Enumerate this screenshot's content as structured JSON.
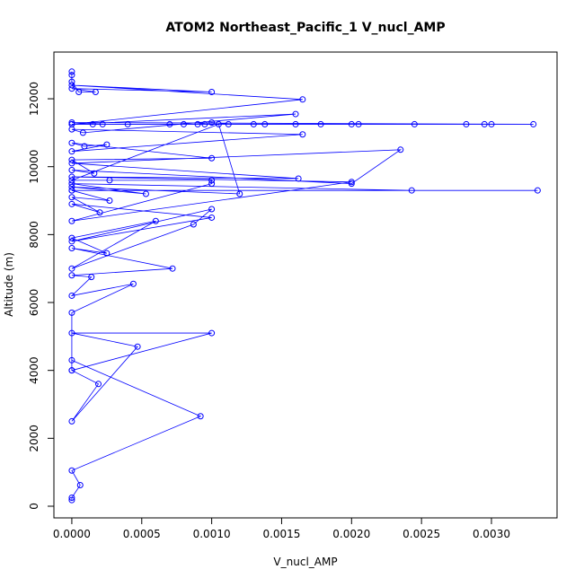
{
  "chart_data": {
    "type": "line",
    "title": "ATOM2 Northeast_Pacific_1 V_nucl_AMP",
    "x_label": "V_nucl_AMP",
    "y_label": "Altitude (m)",
    "color": "#0000ff",
    "x": [
      0,
      0,
      6e-05,
      0,
      0.00092,
      0,
      0,
      0.00019,
      0,
      0.00047,
      0,
      0.001,
      0,
      0,
      0.00044,
      0,
      0.00014,
      0,
      0.00072,
      0,
      0.00025,
      0,
      0.0006,
      0,
      0.00087,
      0.001,
      0,
      0.001,
      0,
      0.0002,
      0,
      0.00027,
      0,
      0.00333,
      0,
      0.00243,
      0,
      0.00053,
      0,
      0.0012,
      0.00105,
      0,
      0.00027,
      0.001,
      0.001,
      0,
      0.002,
      0,
      0.00162,
      0,
      0.00235,
      0.002,
      0,
      0.00016,
      0,
      0.001,
      0,
      9e-05,
      0.00025,
      0,
      0.00165,
      0,
      8e-05,
      0.0016,
      0,
      0.00015,
      0.00022,
      0.0004,
      0.0007,
      0.0008,
      0.0009,
      0.001,
      0.00112,
      0.0013,
      0.0016,
      0.00178,
      0.002,
      0.00245,
      0.00282,
      0.003,
      0.0033,
      0,
      0.00295,
      0.00205,
      0.00138,
      0.00095,
      0,
      0.00165,
      0,
      0.001,
      0,
      0.00017,
      5e-05,
      0,
      0,
      0
    ],
    "values": [
      180,
      250,
      620,
      1050,
      2650,
      4300,
      4000,
      3600,
      2500,
      4700,
      5100,
      5100,
      4000,
      5700,
      6550,
      6200,
      6750,
      6800,
      7000,
      7600,
      7450,
      7900,
      8400,
      7000,
      8300,
      8750,
      7800,
      8500,
      8900,
      8650,
      9100,
      9000,
      9300,
      9300,
      9300,
      9300,
      9500,
      9200,
      9400,
      9200,
      11250,
      9600,
      9600,
      9600,
      9500,
      8400,
      9550,
      9700,
      9650,
      10100,
      10500,
      9500,
      9900,
      9800,
      10200,
      10250,
      10700,
      10600,
      10650,
      10450,
      10950,
      11100,
      11000,
      11550,
      11250,
      11250,
      11250,
      11250,
      11250,
      11250,
      11250,
      11300,
      11250,
      11250,
      11250,
      11250,
      11250,
      11250,
      11250,
      11250,
      11250,
      11300,
      11250,
      11250,
      11250,
      11250,
      11250,
      11980,
      12400,
      12200,
      12300,
      12200,
      12200,
      12500,
      12700,
      12800
    ],
    "xlim": [
      -0.000128,
      0.003469
    ],
    "ylim": [
      -344,
      13376
    ],
    "xticks": [
      {
        "value": 0,
        "label": "0.0000"
      },
      {
        "value": 0.0005,
        "label": "0.0005"
      },
      {
        "value": 0.001,
        "label": "0.0010"
      },
      {
        "value": 0.0015,
        "label": "0.0015"
      },
      {
        "value": 0.002,
        "label": "0.0020"
      },
      {
        "value": 0.0025,
        "label": "0.0025"
      },
      {
        "value": 0.003,
        "label": "0.0030"
      }
    ],
    "yticks": [
      0,
      2000,
      4000,
      6000,
      8000,
      10000,
      12000
    ]
  }
}
